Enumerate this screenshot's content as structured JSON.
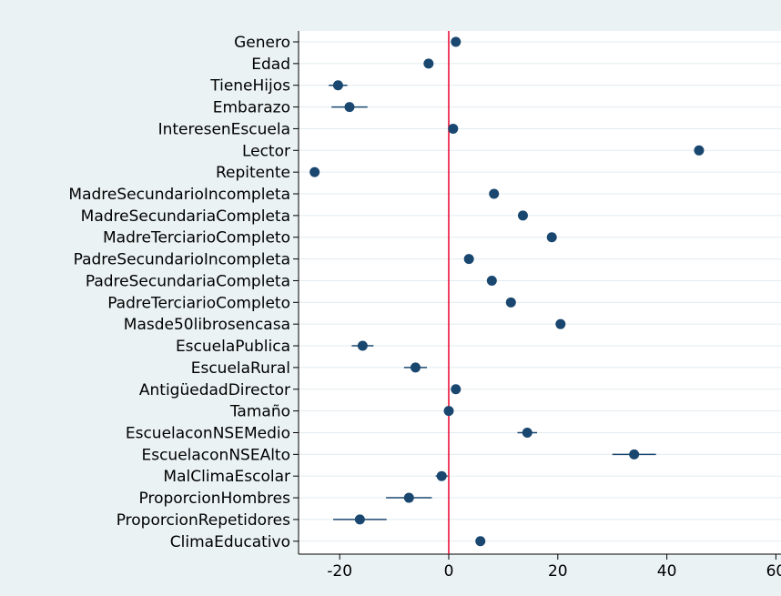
{
  "chart_data": {
    "type": "scatter",
    "subtype": "coefficient-plot",
    "orientation": "horizontal",
    "categories": [
      "Genero",
      "Edad",
      "TieneHijos",
      "Embarazo",
      "InteresenEscuela",
      "Lector",
      "Repitente",
      "MadreSecundarioIncompleta",
      "MadreSecundariaCompleta",
      "MadreTerciarioCompleto",
      "PadreSecundarioIncompleta",
      "PadreSecundariaCompleta",
      "PadreTerciarioCompleto",
      "Masde50librosencasa",
      "EscuelaPublica",
      "EscuelaRural",
      "AntigüedadDirector",
      "Tamaño",
      "EscuelaconNSEMedio",
      "EscuelaconNSEAlto",
      "MalClimaEscolar",
      "ProporcionHombres",
      "ProporcionRepetidores",
      "ClimaEducativo"
    ],
    "values": [
      1.3,
      -3.7,
      -20.3,
      -18.2,
      0.8,
      45.9,
      -24.6,
      8.3,
      13.6,
      18.9,
      3.7,
      7.9,
      11.4,
      20.5,
      -15.8,
      -6.1,
      1.3,
      0.0,
      14.4,
      34.0,
      -1.3,
      -7.3,
      -16.3,
      5.8
    ],
    "ci_low": [
      null,
      null,
      -22.0,
      -21.5,
      null,
      null,
      null,
      null,
      null,
      null,
      null,
      null,
      null,
      null,
      -17.8,
      -8.2,
      null,
      null,
      12.6,
      30.0,
      -2.4,
      -11.5,
      -21.2,
      null
    ],
    "ci_high": [
      null,
      null,
      -18.6,
      -14.9,
      null,
      null,
      null,
      null,
      null,
      null,
      null,
      null,
      null,
      null,
      -13.8,
      -4.0,
      null,
      null,
      16.2,
      38.0,
      -0.2,
      -3.1,
      -11.4,
      null
    ],
    "xlim": [
      -30,
      60
    ],
    "xticks": [
      -20,
      0,
      20,
      40,
      60
    ],
    "xtick_labels": [
      "-20",
      "0",
      "20",
      "40",
      "60"
    ],
    "reference_line": 0,
    "colors": {
      "background": "#eaf2f3",
      "plot_background": "#ffffff",
      "grid": "#e1ebef",
      "marker": "#1a476f",
      "reference_line": "#e8002d"
    },
    "grid": true,
    "legend": "none",
    "title": "",
    "xlabel": "",
    "ylabel": ""
  }
}
